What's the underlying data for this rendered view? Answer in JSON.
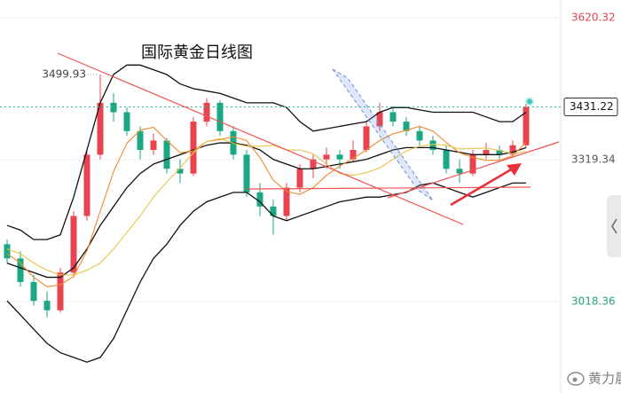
{
  "chart_data": {
    "type": "candlestick",
    "title": "国际黄金日线图",
    "watermark": "黄力晨",
    "ylim": [
      2824.6,
      3657.94
    ],
    "yticks": [
      3018.36,
      3319.34,
      3620.32
    ],
    "ytick_colors": [
      "#27a17c",
      "#555555",
      "#e0454f"
    ],
    "grid": true,
    "up_color": "#e8434f",
    "down_color": "#1ba784",
    "last_price": 3431.22,
    "candles": {
      "open": [
        3140,
        3110,
        3060,
        3020,
        3000,
        3080,
        3200,
        3330,
        3440,
        3420,
        3380,
        3340,
        3360,
        3300,
        3290,
        3400,
        3440,
        3380,
        3330,
        3250,
        3220,
        3200,
        3260,
        3300,
        3320,
        3330,
        3320,
        3340,
        3390,
        3420,
        3400,
        3380,
        3360,
        3340,
        3300,
        3290,
        3330,
        3340,
        3330,
        3350
      ],
      "high": [
        3150,
        3125,
        3075,
        3040,
        3090,
        3210,
        3340,
        3499.93,
        3460,
        3430,
        3390,
        3375,
        3365,
        3320,
        3410,
        3450,
        3445,
        3390,
        3340,
        3270,
        3235,
        3270,
        3310,
        3330,
        3345,
        3340,
        3360,
        3400,
        3440,
        3430,
        3410,
        3390,
        3370,
        3350,
        3320,
        3340,
        3355,
        3350,
        3360,
        3440
      ],
      "low": [
        3100,
        3050,
        3010,
        2985,
        2995,
        3070,
        3190,
        3320,
        3400,
        3370,
        3320,
        3330,
        3290,
        3270,
        3285,
        3390,
        3370,
        3320,
        3240,
        3200,
        3160,
        3190,
        3250,
        3280,
        3300,
        3300,
        3315,
        3335,
        3380,
        3390,
        3370,
        3350,
        3330,
        3290,
        3270,
        3285,
        3320,
        3320,
        3325,
        3345
      ],
      "close": [
        3110,
        3060,
        3020,
        3000,
        3080,
        3200,
        3330,
        3440,
        3420,
        3380,
        3340,
        3360,
        3300,
        3290,
        3400,
        3440,
        3380,
        3330,
        3250,
        3220,
        3200,
        3260,
        3300,
        3320,
        3330,
        3320,
        3340,
        3390,
        3420,
        3400,
        3380,
        3360,
        3340,
        3300,
        3290,
        3330,
        3340,
        3330,
        3350,
        3431.22
      ]
    },
    "series": [
      {
        "color": "#111111",
        "values": [
          3180,
          3170,
          3150,
          3150,
          3160,
          3240,
          3340,
          3440,
          3500,
          3520,
          3520,
          3510,
          3500,
          3480,
          3470,
          3465,
          3460,
          3450,
          3440,
          3440,
          3440,
          3430,
          3400,
          3380,
          3385,
          3390,
          3395,
          3400,
          3420,
          3430,
          3430,
          3425,
          3420,
          3420,
          3420,
          3420,
          3410,
          3400,
          3400,
          3420
        ]
      },
      {
        "color": "#111111",
        "values": [
          3100,
          3090,
          3080,
          3070,
          3070,
          3090,
          3130,
          3180,
          3220,
          3260,
          3290,
          3310,
          3320,
          3330,
          3340,
          3350,
          3355,
          3355,
          3350,
          3340,
          3320,
          3310,
          3300,
          3300,
          3305,
          3310,
          3315,
          3320,
          3330,
          3340,
          3345,
          3345,
          3345,
          3340,
          3335,
          3330,
          3330,
          3330,
          3335,
          3345
        ]
      },
      {
        "color": "#111111",
        "values": [
          3020,
          2990,
          2960,
          2930,
          2910,
          2900,
          2890,
          2900,
          2940,
          3000,
          3060,
          3110,
          3140,
          3180,
          3210,
          3230,
          3240,
          3250,
          3250,
          3230,
          3200,
          3190,
          3200,
          3210,
          3220,
          3230,
          3235,
          3240,
          3240,
          3245,
          3250,
          3265,
          3270,
          3260,
          3250,
          3240,
          3250,
          3260,
          3270,
          3270
        ]
      },
      {
        "color": "#f08a2c",
        "values": [
          3120,
          3100,
          3070,
          3050,
          3054,
          3072,
          3126,
          3210,
          3294,
          3354,
          3382,
          3388,
          3360,
          3334,
          3338,
          3358,
          3362,
          3368,
          3360,
          3324,
          3276,
          3252,
          3246,
          3260,
          3286,
          3306,
          3322,
          3340,
          3360,
          3374,
          3382,
          3390,
          3380,
          3356,
          3334,
          3324,
          3318,
          3318,
          3328,
          3356
        ]
      },
      {
        "color": "#e8c548",
        "values": [
          3130,
          3120,
          3100,
          3085,
          3075,
          3075,
          3085,
          3100,
          3130,
          3165,
          3200,
          3240,
          3272,
          3302,
          3334,
          3358,
          3364,
          3354,
          3348,
          3348,
          3350,
          3340,
          3340,
          3332,
          3310,
          3290,
          3286,
          3292,
          3302,
          3320,
          3338,
          3348,
          3352,
          3350,
          3342,
          3343,
          3344,
          3339,
          3332,
          3337
        ]
      }
    ]
  }
}
